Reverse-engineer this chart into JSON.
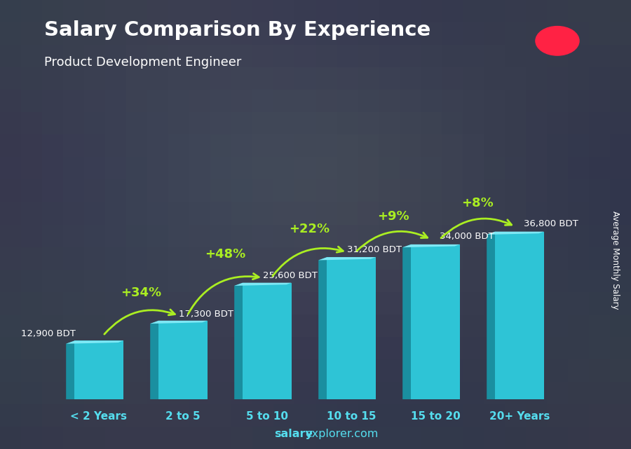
{
  "title": "Salary Comparison By Experience",
  "subtitle": "Product Development Engineer",
  "categories": [
    "< 2 Years",
    "2 to 5",
    "5 to 10",
    "10 to 15",
    "15 to 20",
    "20+ Years"
  ],
  "values": [
    12900,
    17300,
    25600,
    31200,
    34000,
    36800
  ],
  "value_labels": [
    "12,900 BDT",
    "17,300 BDT",
    "25,600 BDT",
    "31,200 BDT",
    "34,000 BDT",
    "36,800 BDT"
  ],
  "pct_changes": [
    "+34%",
    "+48%",
    "+22%",
    "+9%",
    "+8%"
  ],
  "bar_face_color": "#2EC4D6",
  "bar_left_color": "#1A8FA0",
  "bar_top_color": "#7EE8F5",
  "bar_right_color": "#1A8FA0",
  "bg_color": "#4a5a6a",
  "title_color": "#FFFFFF",
  "subtitle_color": "#FFFFFF",
  "ylabel": "Average Monthly Salary",
  "footer_bold": "salary",
  "footer_normal": "explorer.com",
  "pct_color": "#AAEE22",
  "value_label_color": "#FFFFFF",
  "xlabel_color": "#55DDEE",
  "flag_green": "#4CAF1A",
  "flag_red": "#FF2244"
}
